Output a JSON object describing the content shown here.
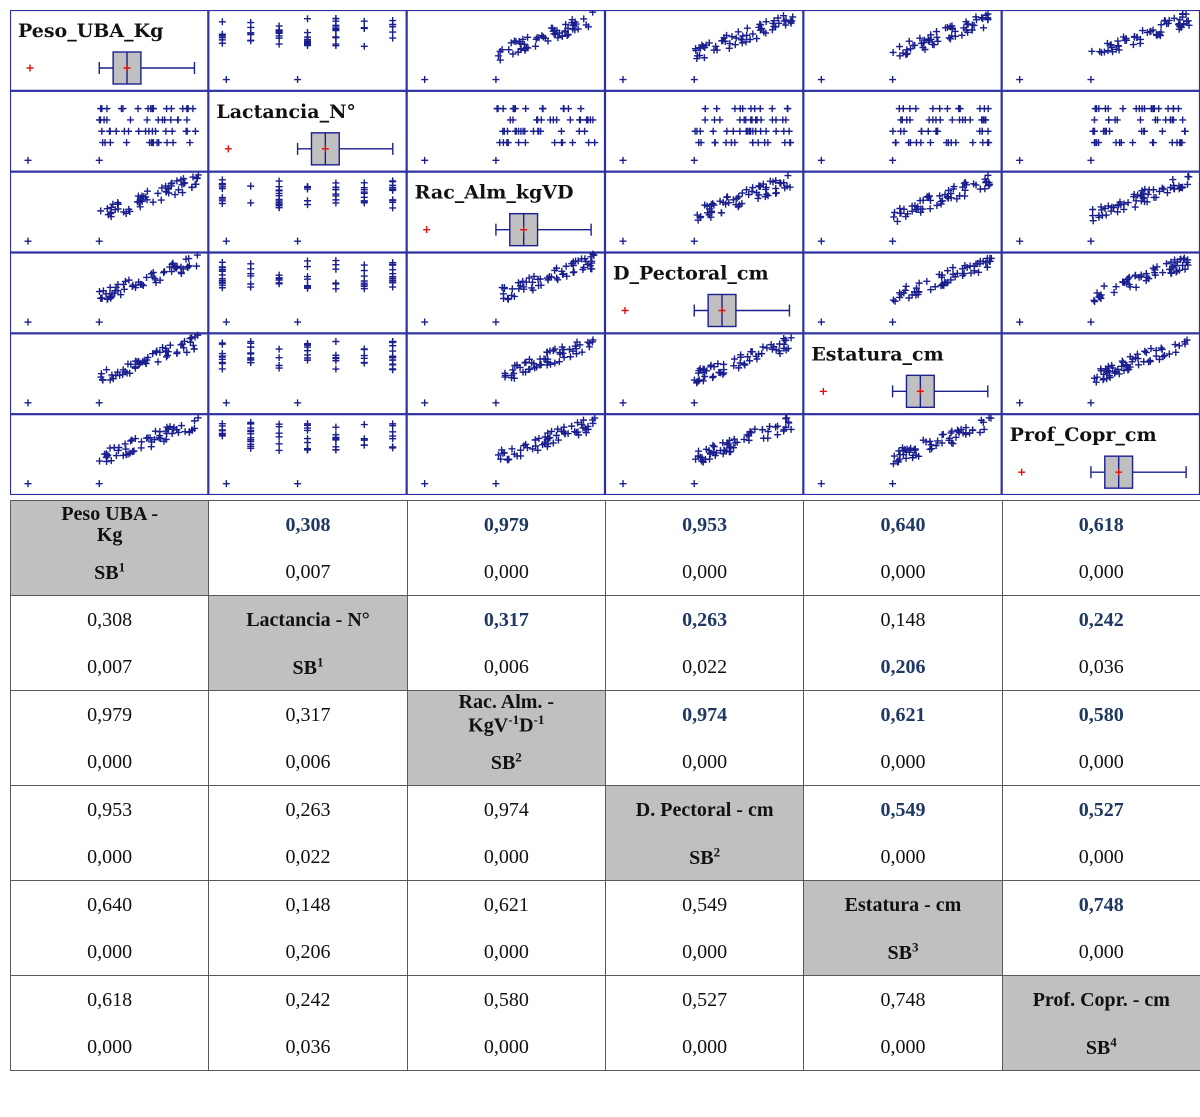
{
  "chart_data": {
    "type": "scatter",
    "variables": [
      "Peso_UBA_Kg",
      "Lactancia_N°",
      "Rac_Alm_kgVD",
      "D_Pectoral_cm",
      "Estatura_cm",
      "Prof_Copr_cm"
    ],
    "plot_color": "#1a1f8f",
    "mean_marker_color": "#e01010",
    "box_fill": "#c0c0c0",
    "grid": false
  },
  "table": {
    "diag_labels": [
      {
        "text": "Peso UBA - Kg",
        "sb": "SB",
        "sup": "1"
      },
      {
        "text": "Lactancia - N°",
        "sb": "SB",
        "sup": "1"
      },
      {
        "text": "Rac. Alm. - KgV",
        "sup1": "-1",
        "mid": "D",
        "sup2": "-1",
        "sb": "SB",
        "sup": "2"
      },
      {
        "text": "D. Pectoral - cm",
        "sb": "SB",
        "sup": "2"
      },
      {
        "text": "Estatura - cm",
        "sb": "SB",
        "sup": "3"
      },
      {
        "text": "Prof. Copr. - cm",
        "sb": "SB",
        "sup": "4"
      }
    ],
    "rows": [
      {
        "r": [
          "",
          "0,308",
          "0,979",
          "0,953",
          "0,640",
          "0,618"
        ],
        "p": [
          "",
          "0,007",
          "0,000",
          "0,000",
          "0,000",
          "0,000"
        ]
      },
      {
        "r": [
          "0,308",
          "",
          "0,317",
          "0,263",
          "0,148",
          "0,242"
        ],
        "p": [
          "0,007",
          "",
          "0,006",
          "0,022",
          "0,206",
          "0,036"
        ]
      },
      {
        "r": [
          "0,979",
          "0,317",
          "",
          "0,974",
          "0,621",
          "0,580"
        ],
        "p": [
          "0,000",
          "0,006",
          "",
          "0,000",
          "0,000",
          "0,000"
        ]
      },
      {
        "r": [
          "0,953",
          "0,263",
          "0,974",
          "",
          "0,549",
          "0,527"
        ],
        "p": [
          "0,000",
          "0,022",
          "0,000",
          "",
          "0,000",
          "0,000"
        ]
      },
      {
        "r": [
          "0,640",
          "0,148",
          "0,621",
          "0,549",
          "",
          "0,748"
        ],
        "p": [
          "0,000",
          "0,206",
          "0,000",
          "0,000",
          "",
          "0,000"
        ]
      },
      {
        "r": [
          "0,618",
          "0,242",
          "0,580",
          "0,527",
          "0,748",
          ""
        ],
        "p": [
          "0,000",
          "0,036",
          "0,000",
          "0,000",
          "0,000",
          ""
        ]
      }
    ],
    "highlighted": [
      [
        0,
        1,
        "r"
      ],
      [
        0,
        2,
        "r"
      ],
      [
        0,
        3,
        "r"
      ],
      [
        0,
        4,
        "r"
      ],
      [
        0,
        5,
        "r"
      ],
      [
        1,
        2,
        "r"
      ],
      [
        1,
        3,
        "r"
      ],
      [
        1,
        5,
        "r"
      ],
      [
        1,
        4,
        "p"
      ],
      [
        2,
        3,
        "r"
      ],
      [
        2,
        4,
        "r"
      ],
      [
        2,
        5,
        "r"
      ],
      [
        3,
        4,
        "r"
      ],
      [
        3,
        5,
        "r"
      ],
      [
        4,
        5,
        "r"
      ]
    ]
  }
}
